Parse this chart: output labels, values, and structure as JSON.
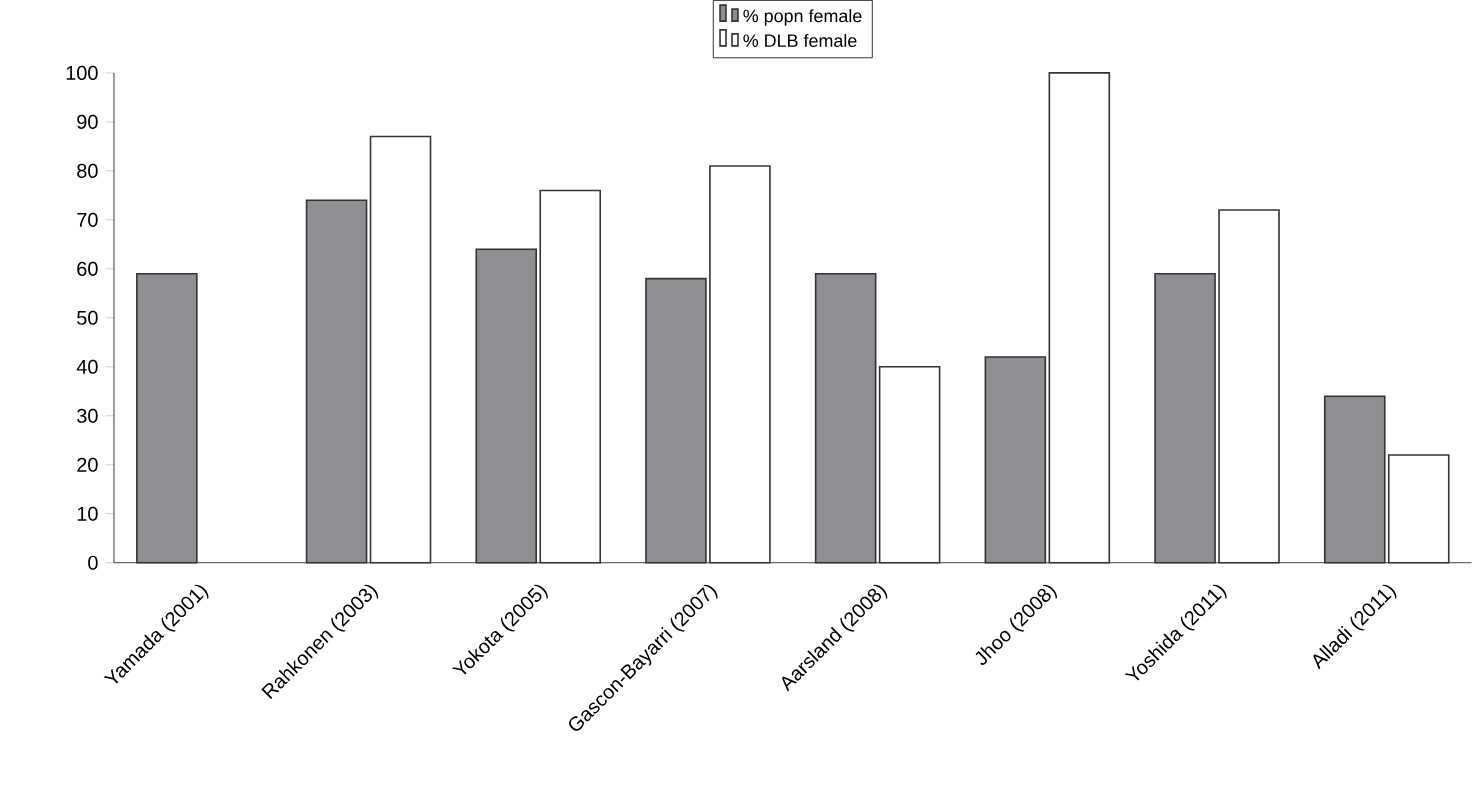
{
  "chart_data": {
    "type": "bar",
    "categories": [
      "Yamada (2001)",
      "Rahkonen (2003)",
      "Yokota (2005)",
      "Gascon-Bayarri (2007)",
      "Aarsland (2008)",
      "Jhoo (2008)",
      "Yoshida (2011)",
      "Alladi (2011)"
    ],
    "series": [
      {
        "name": "% popn female",
        "color": "#8e8f93",
        "values": [
          59,
          74,
          64,
          58,
          59,
          42,
          59,
          34
        ]
      },
      {
        "name": "% DLB female",
        "color": "#ffffff",
        "values": [
          null,
          87,
          76,
          81,
          40,
          100,
          72,
          22
        ]
      }
    ],
    "ylim": [
      0,
      100
    ],
    "yticks": [
      0,
      10,
      20,
      30,
      40,
      50,
      60,
      70,
      80,
      90,
      100
    ],
    "legend": "top"
  }
}
